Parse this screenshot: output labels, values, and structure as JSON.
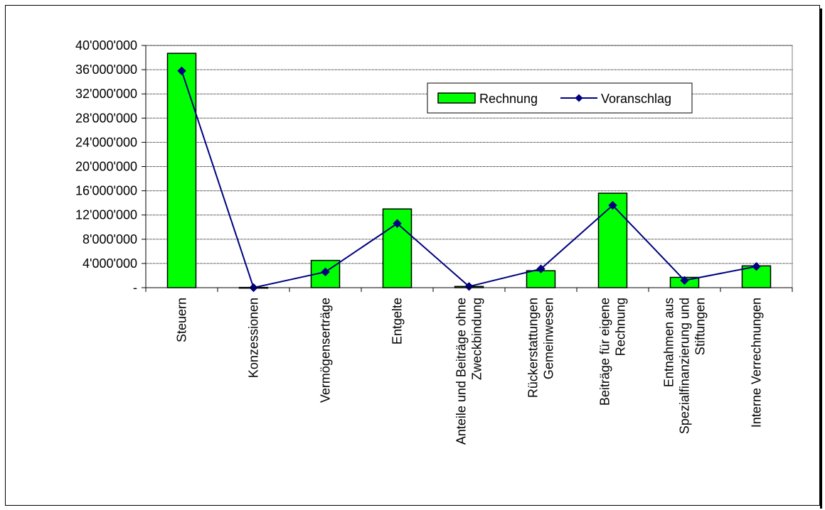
{
  "chart_data": {
    "type": "bar",
    "categories": [
      [
        "Steuern"
      ],
      [
        "Konzessionen"
      ],
      [
        "Vermögenserträge"
      ],
      [
        "Entgelte"
      ],
      [
        "Anteile und Beiträge ohne",
        "Zweckbindung"
      ],
      [
        "Rückerstattungen",
        "Gemeinwesen"
      ],
      [
        "Beiträge für eigene",
        "Rechnung"
      ],
      [
        "Entnahmen aus",
        "Spezialfinanzierung und",
        "Stiftungen"
      ],
      [
        "Interne Verrechnungen"
      ]
    ],
    "series": [
      {
        "name": "Rechnung",
        "type": "bar",
        "color": "#00ff00",
        "values": [
          38700000,
          40000,
          4500000,
          13000000,
          200000,
          2800000,
          15600000,
          1700000,
          3600000
        ]
      },
      {
        "name": "Voranschlag",
        "type": "line",
        "color": "#000080",
        "marker": "diamond",
        "values": [
          35800000,
          0,
          2600000,
          10600000,
          200000,
          3100000,
          13600000,
          1200000,
          3500000
        ]
      }
    ],
    "ylim": [
      0,
      40000000
    ],
    "yticks": [
      {
        "value": 0,
        "label": "-"
      },
      {
        "value": 4000000,
        "label": "4'000'000"
      },
      {
        "value": 8000000,
        "label": "8'000'000"
      },
      {
        "value": 12000000,
        "label": "12'000'000"
      },
      {
        "value": 16000000,
        "label": "16'000'000"
      },
      {
        "value": 20000000,
        "label": "20'000'000"
      },
      {
        "value": 24000000,
        "label": "24'000'000"
      },
      {
        "value": 28000000,
        "label": "28'000'000"
      },
      {
        "value": 32000000,
        "label": "32'000'000"
      },
      {
        "value": 36000000,
        "label": "36'000'000"
      },
      {
        "value": 40000000,
        "label": "40'000'000"
      }
    ],
    "grid": true,
    "legend": "top-right",
    "title": "",
    "xlabel": "",
    "ylabel": ""
  }
}
